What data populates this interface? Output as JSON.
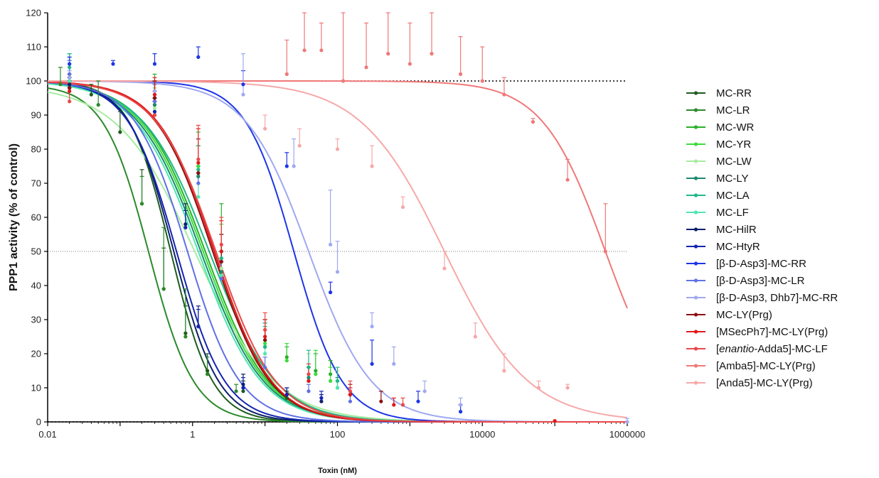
{
  "chart_data": {
    "type": "line",
    "xscale": "log",
    "xlabel": "Toxin (nM)",
    "ylabel": "PPP1 activity (% of control)",
    "xlim": [
      0.01,
      1000000
    ],
    "ylim": [
      0,
      120
    ],
    "x_ticks": [
      {
        "value": 0.01,
        "label": "0.01"
      },
      {
        "value": 1,
        "label": "1"
      },
      {
        "value": 100,
        "label": "100"
      },
      {
        "value": 10000,
        "label": "10000"
      },
      {
        "value": 1000000,
        "label": "1000000"
      }
    ],
    "y_ticks": [
      0,
      10,
      20,
      30,
      40,
      50,
      60,
      70,
      80,
      90,
      100,
      110,
      120
    ],
    "reference_lines": [
      {
        "y": 100,
        "style": "dotted"
      },
      {
        "y": 50,
        "style": "dotted"
      },
      {
        "y": 0,
        "style": "dotted"
      }
    ],
    "legend_position": "right",
    "series": [
      {
        "name": "MC-RR",
        "color": "#1e5c1e",
        "fit": {
          "ic50": 0.5,
          "hill": 1.5,
          "top": 100
        },
        "points": [
          [
            0.02,
            98,
            2
          ],
          [
            0.04,
            96,
            3
          ],
          [
            0.1,
            85,
            6
          ],
          [
            0.2,
            64,
            10
          ],
          [
            0.4,
            39,
            12
          ],
          [
            0.8,
            26,
            8
          ],
          [
            1.6,
            15,
            5
          ],
          [
            5,
            9,
            3
          ],
          [
            20,
            7,
            2
          ]
        ]
      },
      {
        "name": "MC-LR",
        "color": "#2a8a2a",
        "fit": {
          "ic50": 0.25,
          "hill": 1.4,
          "top": 99
        },
        "points": [
          [
            0.015,
            99,
            5
          ],
          [
            0.05,
            93,
            7
          ],
          [
            0.2,
            64,
            8
          ],
          [
            0.4,
            39,
            18
          ],
          [
            0.8,
            25,
            14
          ],
          [
            1.6,
            14,
            5
          ],
          [
            4,
            9,
            2
          ]
        ]
      },
      {
        "name": "MC-WR",
        "color": "#28b028",
        "fit": {
          "ic50": 1.5,
          "hill": 1.0,
          "top": 100
        },
        "points": [
          [
            0.02,
            101,
            6
          ],
          [
            0.3,
            93,
            9
          ],
          [
            1.2,
            73,
            12
          ],
          [
            2.5,
            50,
            14
          ],
          [
            10,
            24,
            4
          ],
          [
            20,
            19,
            3
          ],
          [
            50,
            15,
            5
          ],
          [
            80,
            14,
            4
          ]
        ]
      },
      {
        "name": "MC-YR",
        "color": "#3cdc3c",
        "fit": {
          "ic50": 1.4,
          "hill": 1.0,
          "top": 100
        },
        "points": [
          [
            0.02,
            102,
            6
          ],
          [
            0.3,
            93,
            5
          ],
          [
            1.2,
            75,
            10
          ],
          [
            2.5,
            48,
            10
          ],
          [
            10,
            23,
            7
          ],
          [
            20,
            18,
            5
          ],
          [
            50,
            14,
            7
          ],
          [
            80,
            12,
            4
          ]
        ]
      },
      {
        "name": "MC-LW",
        "color": "#a6eca0",
        "fit": {
          "ic50": 1.1,
          "hill": 0.8,
          "top": 99
        },
        "points": [
          [
            0.02,
            97,
            6
          ],
          [
            0.3,
            92,
            6
          ],
          [
            1.2,
            72,
            9
          ],
          [
            2.5,
            45,
            10
          ],
          [
            10,
            22,
            5
          ],
          [
            40,
            16,
            4
          ],
          [
            100,
            12,
            3
          ]
        ]
      },
      {
        "name": "MC-LY",
        "color": "#1a8a6e",
        "fit": {
          "ic50": 1.3,
          "hill": 1.0,
          "top": 100
        },
        "points": [
          [
            0.02,
            99,
            7
          ],
          [
            0.3,
            93,
            7
          ],
          [
            1.2,
            72,
            9
          ],
          [
            2.5,
            44,
            6
          ],
          [
            10,
            22,
            7
          ],
          [
            40,
            13,
            4
          ],
          [
            100,
            10,
            3
          ]
        ]
      },
      {
        "name": "MC-LA",
        "color": "#20b888",
        "fit": {
          "ic50": 1.7,
          "hill": 0.95,
          "top": 100
        },
        "points": [
          [
            0.02,
            104,
            4
          ],
          [
            0.3,
            95,
            5
          ],
          [
            1.2,
            74,
            7
          ],
          [
            2.5,
            48,
            7
          ],
          [
            10,
            22,
            6
          ],
          [
            40,
            16,
            5
          ],
          [
            100,
            12,
            4
          ]
        ]
      },
      {
        "name": "MC-LF",
        "color": "#4ee6b0",
        "fit": {
          "ic50": 1.2,
          "hill": 1.0,
          "top": 100
        },
        "points": [
          [
            0.02,
            100,
            5
          ],
          [
            0.3,
            91,
            5
          ],
          [
            1.2,
            66,
            7
          ],
          [
            2.5,
            43,
            5
          ],
          [
            10,
            20,
            4
          ],
          [
            40,
            14,
            3
          ],
          [
            100,
            10,
            2
          ]
        ]
      },
      {
        "name": "MC-HilR",
        "color": "#0d1f6e",
        "fit": {
          "ic50": 0.55,
          "hill": 1.4,
          "top": 100
        },
        "points": [
          [
            0.02,
            99,
            2
          ],
          [
            0.3,
            90,
            4
          ],
          [
            0.8,
            58,
            6
          ],
          [
            1.2,
            28,
            6
          ],
          [
            5,
            11,
            3
          ],
          [
            20,
            8,
            2
          ],
          [
            60,
            6,
            2
          ]
        ]
      },
      {
        "name": "MC-HtyR",
        "color": "#1424b0",
        "fit": {
          "ic50": 0.6,
          "hill": 1.3,
          "top": 100
        },
        "points": [
          [
            0.02,
            98,
            2
          ],
          [
            0.3,
            91,
            4
          ],
          [
            0.8,
            57,
            5
          ],
          [
            1.2,
            28,
            5
          ],
          [
            5,
            10,
            3
          ],
          [
            20,
            8,
            2
          ],
          [
            60,
            7,
            2
          ]
        ]
      },
      {
        "name": "[β-D-Asp3]-MC-RR",
        "color": "#1d35e8",
        "fit": {
          "ic50": 25,
          "hill": 1.3,
          "top": 100
        },
        "points": [
          [
            0.02,
            105,
            2
          ],
          [
            0.08,
            105,
            1
          ],
          [
            0.3,
            105,
            3
          ],
          [
            1.2,
            107,
            3
          ],
          [
            5,
            99,
            4
          ],
          [
            20,
            75,
            4
          ],
          [
            80,
            38,
            3
          ],
          [
            300,
            17,
            7
          ],
          [
            1300,
            6,
            3
          ],
          [
            5000,
            3,
            2
          ]
        ]
      },
      {
        "name": "[β-D-Asp3]-MC-LR",
        "color": "#5f70e6",
        "fit": {
          "ic50": 0.85,
          "hill": 1.2,
          "top": 100
        },
        "points": [
          [
            0.02,
            102,
            4
          ],
          [
            0.3,
            94,
            5
          ],
          [
            1.2,
            70,
            5
          ],
          [
            2.5,
            42,
            5
          ],
          [
            10,
            16,
            3
          ],
          [
            40,
            9,
            2
          ],
          [
            150,
            6,
            2
          ]
        ]
      },
      {
        "name": "[β-D-Asp3, Dhb7]-MC-RR",
        "color": "#9fa8f0",
        "fit": {
          "ic50": 40,
          "hill": 1.0,
          "top": 100
        },
        "points": [
          [
            0.02,
            101,
            2
          ],
          [
            0.3,
            97,
            3
          ],
          [
            5,
            96,
            12
          ],
          [
            25,
            75,
            8
          ],
          [
            80,
            52,
            16
          ],
          [
            100,
            44,
            9
          ],
          [
            300,
            28,
            4
          ],
          [
            600,
            17,
            5
          ],
          [
            1600,
            9,
            3
          ],
          [
            5000,
            5,
            2
          ],
          [
            1000000,
            0,
            1
          ]
        ]
      },
      {
        "name": "MC-LY(Prg)",
        "color": "#8c1010",
        "fit": {
          "ic50": 1.9,
          "hill": 1.1,
          "top": 100
        },
        "points": [
          [
            0.02,
            98,
            3
          ],
          [
            0.3,
            95,
            5
          ],
          [
            1.2,
            73,
            10
          ],
          [
            2.5,
            47,
            8
          ],
          [
            10,
            24,
            6
          ],
          [
            40,
            12,
            4
          ],
          [
            150,
            8,
            3
          ],
          [
            400,
            6,
            3
          ]
        ]
      },
      {
        "name": "[MSecPh7]-MC-LY(Prg)",
        "color": "#e01818",
        "fit": {
          "ic50": 2.0,
          "hill": 1.1,
          "top": 100
        },
        "points": [
          [
            0.02,
            97,
            5
          ],
          [
            0.3,
            96,
            5
          ],
          [
            1.2,
            76,
            10
          ],
          [
            2.5,
            50,
            9
          ],
          [
            10,
            25,
            5
          ],
          [
            40,
            12,
            4
          ],
          [
            150,
            8,
            2
          ],
          [
            600,
            5,
            2
          ],
          [
            100000,
            0.3,
            0
          ]
        ]
      },
      {
        "name": "[enantio-Adda5]-MC-LF",
        "color": "#ea4848",
        "fit": {
          "ic50": 2.1,
          "hill": 1.05,
          "top": 100
        },
        "points": [
          [
            0.02,
            94,
            5
          ],
          [
            0.3,
            90,
            7
          ],
          [
            1.2,
            77,
            10
          ],
          [
            2.5,
            52,
            8
          ],
          [
            10,
            27,
            5
          ],
          [
            40,
            14,
            3
          ],
          [
            150,
            9,
            3
          ],
          [
            800,
            5,
            2
          ]
        ]
      },
      {
        "name": "[Amba5]-MC-LY(Prg)",
        "color": "#f07878",
        "fit": {
          "ic50": 500000,
          "hill": 1.0,
          "top": 100
        },
        "points": [
          [
            20,
            102,
            10
          ],
          [
            35,
            109,
            11
          ],
          [
            60,
            109,
            8
          ],
          [
            120,
            100,
            22
          ],
          [
            250,
            104,
            13
          ],
          [
            500,
            108,
            12
          ],
          [
            1000,
            105,
            12
          ],
          [
            2000,
            108,
            13
          ],
          [
            5000,
            102,
            11
          ],
          [
            10000,
            100,
            10
          ],
          [
            20000,
            96,
            5
          ],
          [
            50000,
            88,
            1
          ],
          [
            150000,
            71,
            6
          ],
          [
            500000,
            50,
            14
          ]
        ]
      },
      {
        "name": "[Anda5]-MC-LY(Prg)",
        "color": "#f6a8a8",
        "fit": {
          "ic50": 3000,
          "hill": 0.75,
          "top": 100
        },
        "points": [
          [
            10,
            86,
            4
          ],
          [
            30,
            81,
            5
          ],
          [
            100,
            80,
            3
          ],
          [
            300,
            75,
            6
          ],
          [
            800,
            63,
            3
          ],
          [
            3000,
            45,
            5
          ],
          [
            8000,
            25,
            4
          ],
          [
            20000,
            15,
            5
          ],
          [
            60000,
            10,
            2
          ],
          [
            150000,
            10,
            1
          ]
        ]
      }
    ]
  }
}
